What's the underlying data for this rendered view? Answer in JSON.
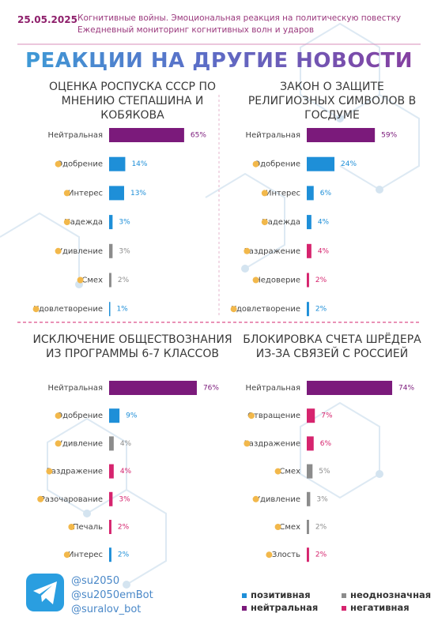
{
  "header": {
    "date": "25.05.2025",
    "subtitle_lines": [
      "Когнитивные войны. Эмоциональная реакция на политическую повестку",
      "Ежедневный мониторинг когнитивных волн и ударов"
    ],
    "title": "РЕАКЦИИ НА ДРУГИЕ НОВОСТИ"
  },
  "chart_data": [
    {
      "type": "hbar",
      "title": "ОЦЕНКА РОСПУСКА СССР ПО МНЕНИЮ СТЕПАШИНА И КОБЯКОВА",
      "categories": [
        "Нейтральная",
        "Одобрение",
        "Интерес",
        "Надежда",
        "Удивление",
        "Смех",
        "Удовлетворение"
      ],
      "values": [
        65,
        14,
        13,
        3,
        3,
        2,
        1
      ],
      "value_labels": [
        "65%",
        "14%",
        "13%",
        "3%",
        "3%",
        "2%",
        "1%"
      ],
      "colors": [
        "#7b1a7b",
        "#1e8fd8",
        "#1e8fd8",
        "#1e8fd8",
        "#8c8c8c",
        "#8c8c8c",
        "#1e8fd8"
      ]
    },
    {
      "type": "hbar",
      "title": "ЗАКОН О ЗАЩИТЕ РЕЛИГИОЗНЫХ СИМВОЛОВ В ГОСДУМЕ",
      "categories": [
        "Нейтральная",
        "Одобрение",
        "Интерес",
        "Надежда",
        "Раздражение",
        "Недоверие",
        "Удовлетворение"
      ],
      "values": [
        59,
        24,
        6,
        4,
        4,
        2,
        2
      ],
      "value_labels": [
        "59%",
        "24%",
        "6%",
        "4%",
        "4%",
        "2%",
        "2%"
      ],
      "colors": [
        "#7b1a7b",
        "#1e8fd8",
        "#1e8fd8",
        "#1e8fd8",
        "#d6246e",
        "#d6246e",
        "#1e8fd8"
      ]
    },
    {
      "type": "hbar",
      "title": "ИСКЛЮЧЕНИЕ ОБЩЕСТВОЗНАНИЯ ИЗ ПРОГРАММЫ 6-7 КЛАССОВ",
      "categories": [
        "Нейтральная",
        "Одобрение",
        "Удивление",
        "Раздражение",
        "Разочарование",
        "Печаль",
        "Интерес"
      ],
      "values": [
        76,
        9,
        4,
        4,
        3,
        2,
        2
      ],
      "value_labels": [
        "76%",
        "9%",
        "4%",
        "4%",
        "3%",
        "2%",
        "2%"
      ],
      "colors": [
        "#7b1a7b",
        "#1e8fd8",
        "#8c8c8c",
        "#d6246e",
        "#d6246e",
        "#d6246e",
        "#1e8fd8"
      ]
    },
    {
      "type": "hbar",
      "title": "БЛОКИРОВКА СЧЕТА ШРЁДЕРА ИЗ-ЗА СВЯЗЕЙ С РОССИЕЙ",
      "categories": [
        "Нейтральная",
        "Отвращение",
        "Раздражение",
        "Смех",
        "Удивление",
        "Смех",
        "Злость"
      ],
      "values": [
        74,
        7,
        6,
        5,
        3,
        2,
        2
      ],
      "value_labels": [
        "74%",
        "7%",
        "6%",
        "5%",
        "3%",
        "2%",
        "2%"
      ],
      "colors": [
        "#7b1a7b",
        "#d6246e",
        "#d6246e",
        "#8c8c8c",
        "#8c8c8c",
        "#8c8c8c",
        "#d6246e"
      ]
    }
  ],
  "contacts": [
    "@su2050",
    "@su2050emBot",
    "@suralov_bot"
  ],
  "legend": [
    {
      "label": "позитивная",
      "color": "#1e8fd8"
    },
    {
      "label": "неоднозначная",
      "color": "#8c8c8c"
    },
    {
      "label": "нейтральная",
      "color": "#7b1a7b"
    },
    {
      "label": "негативная",
      "color": "#d6246e"
    }
  ]
}
